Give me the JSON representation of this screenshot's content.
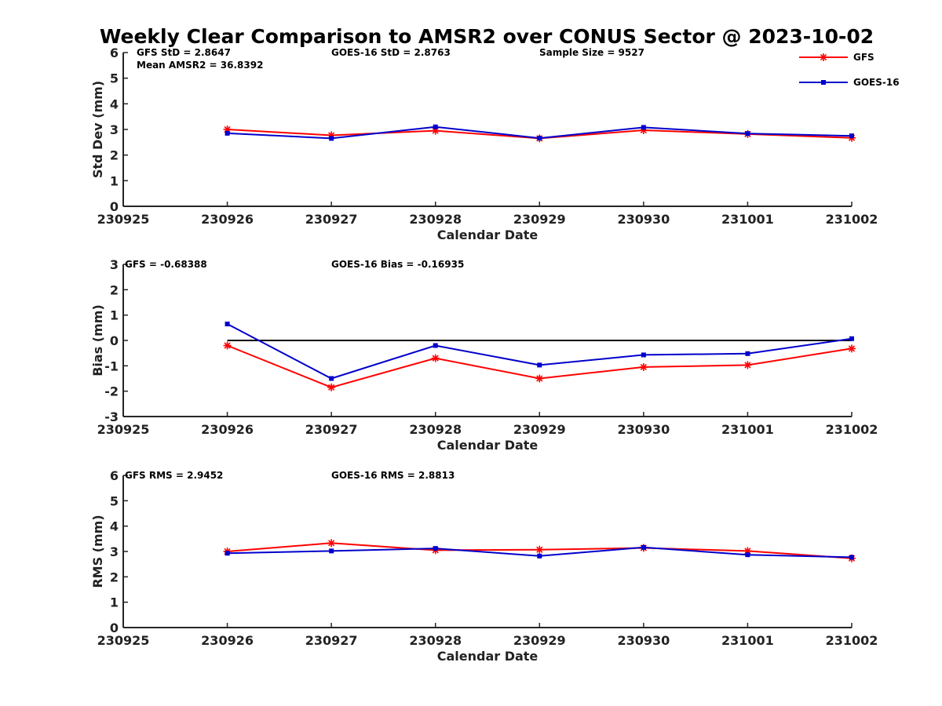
{
  "title": "Weekly Clear Comparison to AMSR2 over CONUS Sector @ 2023-10-02",
  "colors": {
    "gfs": "#ff0000",
    "goes": "#0000cc",
    "axis": "#262626",
    "zero_line": "#000000"
  },
  "legend": {
    "position": "top-right",
    "items": [
      {
        "label": "GFS",
        "marker": "asterisk",
        "color": "#ff0000"
      },
      {
        "label": "GOES-16",
        "marker": "square",
        "color": "#0000cc"
      }
    ]
  },
  "chart_data": [
    {
      "type": "line",
      "title": "Weekly Clear Comparison to AMSR2 over CONUS Sector @ 2023-10-02",
      "xlabel": "Calendar Date",
      "ylabel": "Std Dev (mm)",
      "xlim": [
        "230925",
        "231002"
      ],
      "ylim": [
        0,
        6
      ],
      "x_ticks": [
        "230925",
        "230926",
        "230927",
        "230928",
        "230929",
        "230930",
        "231001",
        "231002"
      ],
      "y_ticks": [
        "0",
        "1",
        "2",
        "3",
        "4",
        "5",
        "6"
      ],
      "x": [
        "230926",
        "230927",
        "230928",
        "230929",
        "230930",
        "231001",
        "231002"
      ],
      "series": [
        {
          "name": "GFS",
          "values": [
            3.0,
            2.77,
            2.95,
            2.65,
            2.97,
            2.82,
            2.67
          ]
        },
        {
          "name": "GOES-16",
          "values": [
            2.85,
            2.65,
            3.1,
            2.66,
            3.08,
            2.84,
            2.75
          ]
        }
      ],
      "reference_line": null,
      "annotations": {
        "gfs": "GFS StD = 2.8647",
        "goes": "GOES-16 StD = 2.8763",
        "sample": "Sample Size = 9527",
        "mean": "Mean AMSR2 = 36.8392"
      },
      "grid": false
    },
    {
      "type": "line",
      "xlabel": "Calendar Date",
      "ylabel": "Bias (mm)",
      "xlim": [
        "230925",
        "231002"
      ],
      "ylim": [
        -3,
        3
      ],
      "x_ticks": [
        "230925",
        "230926",
        "230927",
        "230928",
        "230929",
        "230930",
        "231001",
        "231002"
      ],
      "y_ticks": [
        "-3",
        "-2",
        "-1",
        "0",
        "1",
        "2",
        "3"
      ],
      "x": [
        "230926",
        "230927",
        "230928",
        "230929",
        "230930",
        "231001",
        "231002"
      ],
      "series": [
        {
          "name": "GFS",
          "values": [
            -0.2,
            -1.85,
            -0.7,
            -1.5,
            -1.05,
            -0.97,
            -0.32
          ]
        },
        {
          "name": "GOES-16",
          "values": [
            0.65,
            -1.5,
            -0.2,
            -0.97,
            -0.57,
            -0.52,
            0.07
          ]
        }
      ],
      "reference_line": 0,
      "annotations": {
        "gfs": "GFS = -0.68388",
        "goes": "GOES-16 Bias  = -0.16935"
      },
      "grid": false
    },
    {
      "type": "line",
      "xlabel": "Calendar Date",
      "ylabel": "RMS (mm)",
      "xlim": [
        "230925",
        "231002"
      ],
      "ylim": [
        0,
        6
      ],
      "x_ticks": [
        "230925",
        "230926",
        "230927",
        "230928",
        "230929",
        "230930",
        "231001",
        "231002"
      ],
      "y_ticks": [
        "0",
        "1",
        "2",
        "3",
        "4",
        "5",
        "6"
      ],
      "x": [
        "230926",
        "230927",
        "230928",
        "230929",
        "230930",
        "231001",
        "231002"
      ],
      "series": [
        {
          "name": "GFS",
          "values": [
            3.0,
            3.33,
            3.05,
            3.07,
            3.14,
            3.02,
            2.73
          ]
        },
        {
          "name": "GOES-16",
          "values": [
            2.93,
            3.02,
            3.12,
            2.82,
            3.16,
            2.87,
            2.77
          ]
        }
      ],
      "reference_line": null,
      "annotations": {
        "gfs": "GFS RMS = 2.9452",
        "goes": "GOES-16 RMS = 2.8813"
      },
      "grid": false
    }
  ]
}
